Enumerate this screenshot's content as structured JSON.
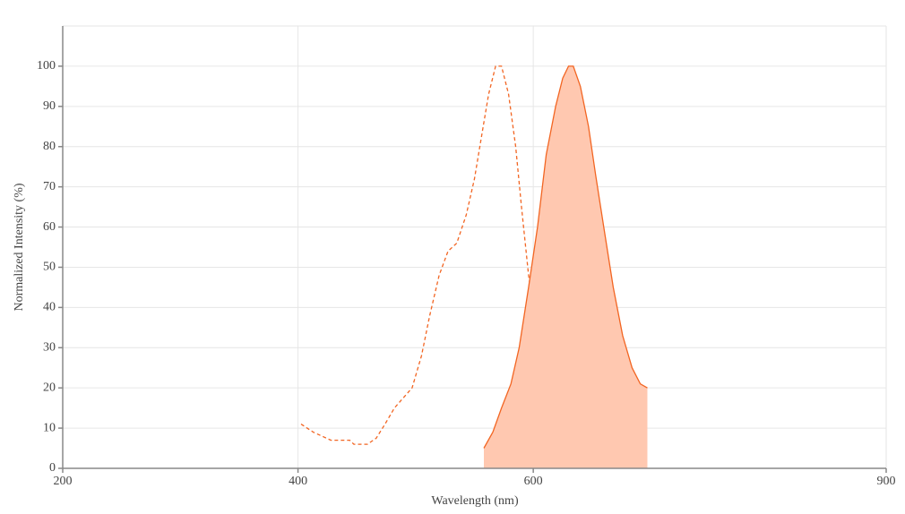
{
  "chart_data": {
    "type": "line",
    "x_label": "Wavelength (nm)",
    "y_label": "Normalized Intensity (%)",
    "xlim": [
      200,
      900
    ],
    "xticks": [
      200,
      400,
      600,
      900
    ],
    "ylim": [
      0,
      110
    ],
    "yticks": [
      0,
      10,
      20,
      30,
      40,
      50,
      60,
      70,
      80,
      90,
      100
    ],
    "grid": true,
    "series": [
      {
        "color": "#f26522",
        "dashed": true,
        "filled": false,
        "x": [
          402.6,
          413,
          428,
          444,
          447.5,
          459,
          466.5,
          474,
          482,
          497,
          505,
          512,
          520,
          527.5,
          535,
          543,
          550,
          555.7,
          562,
          568,
          573,
          579,
          585,
          590,
          596,
          601,
          606,
          613,
          621,
          629,
          638
        ],
        "values": [
          11,
          9,
          7,
          7,
          6,
          6,
          7.5,
          11,
          15,
          20,
          28,
          38,
          48,
          54,
          56,
          63,
          72,
          82,
          93,
          100,
          100,
          93,
          80,
          65,
          48,
          38,
          28,
          15,
          7,
          3,
          1.5
        ]
      },
      {
        "color": "#f26522",
        "dashed": false,
        "filled": true,
        "fill": "#ffc8b0",
        "x": [
          558,
          565.6,
          573,
          581,
          588,
          596,
          603.6,
          611,
          619,
          625,
          630,
          634,
          640,
          647,
          653,
          661,
          668,
          676,
          684,
          691,
          697
        ],
        "values": [
          5,
          9,
          15,
          21,
          30,
          45,
          60,
          78,
          90,
          97,
          100,
          100,
          95,
          85,
          73,
          58,
          45,
          33,
          25,
          21,
          20
        ]
      }
    ]
  }
}
